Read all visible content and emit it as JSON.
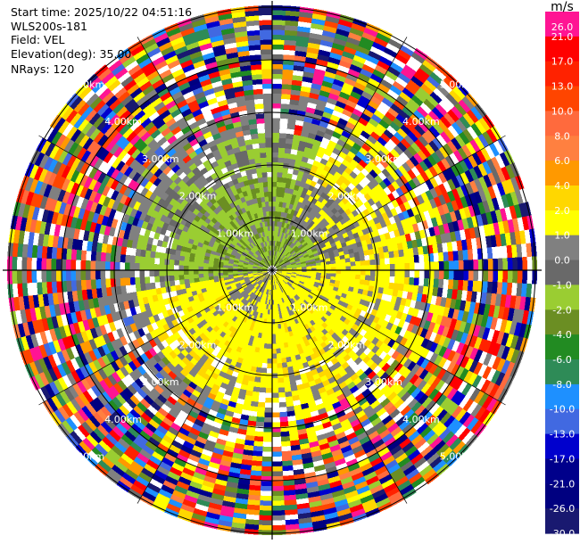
{
  "header": {
    "start_time": "Start time: 2025/10/22 04:51:16",
    "instrument": "WLS200s-181",
    "field": "Field: VEL",
    "elevation": "Elevation(deg): 35.00",
    "nrays": "NRays: 120"
  },
  "chart_data": {
    "type": "heatmap",
    "projection": "polar PPI",
    "field": "VEL",
    "units": "m/s",
    "n_rays": 120,
    "elevation_deg": 35.0,
    "range_rings_km": [
      1.0,
      2.0,
      3.0,
      4.0,
      5.0
    ],
    "ring_labels": [
      "1.00km",
      "2.00km",
      "3.00km",
      "4.00km",
      "5.00km"
    ],
    "max_range_km": 5.0,
    "colorbar": {
      "label": "m/s",
      "ticks": [
        "26.0",
        "21.0",
        "17.0",
        "13.0",
        "10.0",
        "8.0",
        "6.0",
        "4.0",
        "2.0",
        "1.0",
        "0.0",
        "-1.0",
        "-2.0",
        "-4.0",
        "-6.0",
        "-8.0",
        "-10.0",
        "-13.0",
        "-17.0",
        "-21.0",
        "-26.0",
        "-30.0"
      ],
      "colors": [
        "#ff1493",
        "#ff0000",
        "#ff2200",
        "#ff4500",
        "#ff6a3d",
        "#ff8040",
        "#ff9900",
        "#ffd700",
        "#ffff00",
        "#808080",
        "#696969",
        "#9acd32",
        "#6b8e23",
        "#228b22",
        "#2e8b57",
        "#1e90ff",
        "#4169e1",
        "#0000cd",
        "#00008b",
        "#000080",
        "#191970"
      ]
    },
    "pattern": "inner region (<~2.5 km) coherent: green (-1 to -2 m/s) to the north, yellow (2 to 4 m/s) to the south-east, grey near zero; outer region noisy with all colours"
  }
}
